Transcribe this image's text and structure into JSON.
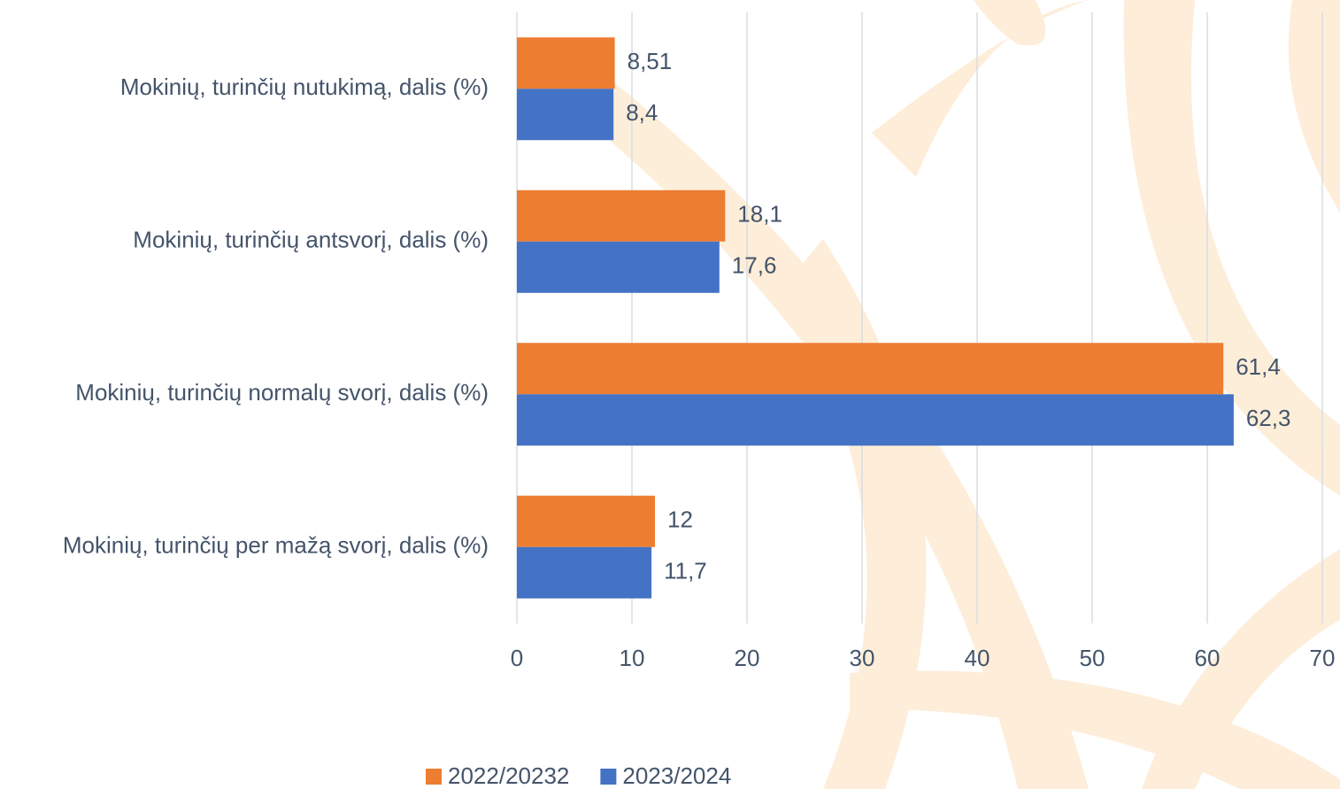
{
  "chart_data": {
    "type": "hbar",
    "categories": [
      "Mokinių, turinčių nutukimą, dalis (%)",
      "Mokinių, turinčių antsvorį, dalis (%)",
      "Mokinių, turinčių normalų svorį, dalis (%)",
      "Mokinių, turinčių per mažą svorį, dalis (%)"
    ],
    "series": [
      {
        "name": "2022/20232",
        "color": "#ed7d31",
        "values": [
          8.51,
          18.1,
          61.4,
          12
        ],
        "value_labels": [
          "8,51",
          "18,1",
          "61,4",
          "12"
        ]
      },
      {
        "name": "2023/2024",
        "color": "#4472c4",
        "values": [
          8.4,
          17.6,
          62.3,
          11.7
        ],
        "value_labels": [
          "8,4",
          "17,6",
          "62,3",
          "11,7"
        ]
      }
    ],
    "xlim": [
      0,
      70
    ],
    "xticks": [
      0,
      10,
      20,
      30,
      40,
      50,
      60,
      70
    ],
    "grid": true,
    "legend": "bottom"
  }
}
